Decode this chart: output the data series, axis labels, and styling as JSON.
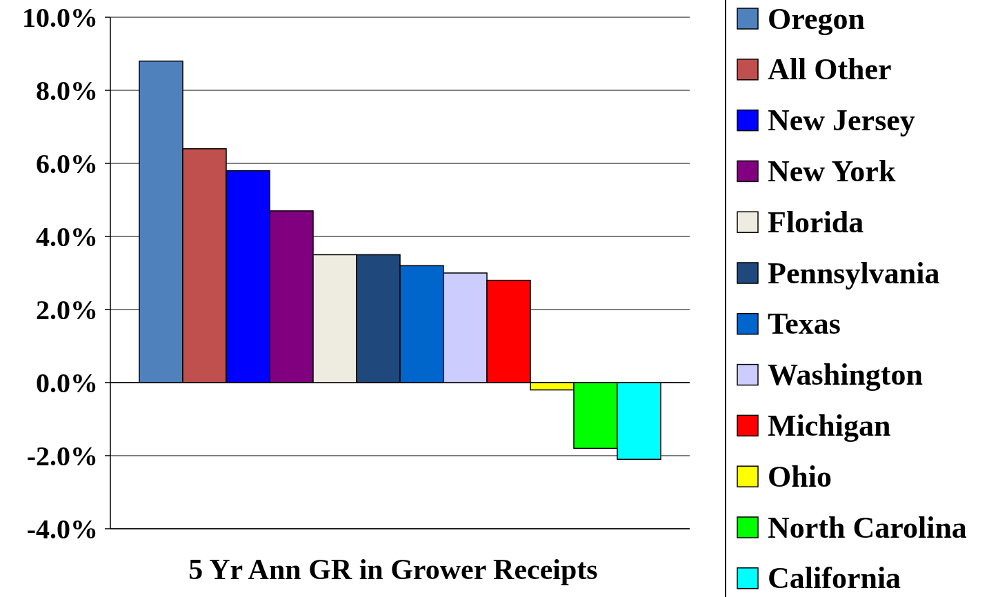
{
  "chart_data": {
    "type": "bar",
    "xlabel": "5 Yr Ann GR in Grower Receipts",
    "categories": [
      null
    ],
    "series": [
      {
        "name": "Oregon",
        "color": "#4f81bd",
        "values": [
          8.8
        ]
      },
      {
        "name": "All Other",
        "color": "#c0504d",
        "values": [
          6.4
        ]
      },
      {
        "name": "New Jersey",
        "color": "#0000ff",
        "values": [
          5.8
        ]
      },
      {
        "name": "New York",
        "color": "#800080",
        "values": [
          4.7
        ]
      },
      {
        "name": "Florida",
        "color": "#eeece1",
        "values": [
          3.5
        ]
      },
      {
        "name": "Pennsylvania",
        "color": "#1f497d",
        "values": [
          3.5
        ]
      },
      {
        "name": "Texas",
        "color": "#0066cc",
        "values": [
          3.2
        ]
      },
      {
        "name": "Washington",
        "color": "#ccccff",
        "values": [
          3.0
        ]
      },
      {
        "name": "Michigan",
        "color": "#ff0000",
        "values": [
          2.8
        ]
      },
      {
        "name": "Ohio",
        "color": "#ffff00",
        "values": [
          -0.2
        ]
      },
      {
        "name": "North Carolina",
        "color": "#00ff00",
        "values": [
          -1.8
        ]
      },
      {
        "name": "California",
        "color": "#00ffff",
        "values": [
          -2.1
        ]
      }
    ],
    "ylim": [
      -4,
      10
    ],
    "yticks": [
      {
        "value": -4,
        "label": "-4.0%"
      },
      {
        "value": -2,
        "label": "-2.0%"
      },
      {
        "value": 0,
        "label": "0.0%"
      },
      {
        "value": 2,
        "label": "2.0%"
      },
      {
        "value": 4,
        "label": "4.0%"
      },
      {
        "value": 6,
        "label": "6.0%"
      },
      {
        "value": 8,
        "label": "8.0%"
      },
      {
        "value": 10,
        "label": "10.0%"
      }
    ],
    "grid": "y",
    "legend": "right"
  }
}
